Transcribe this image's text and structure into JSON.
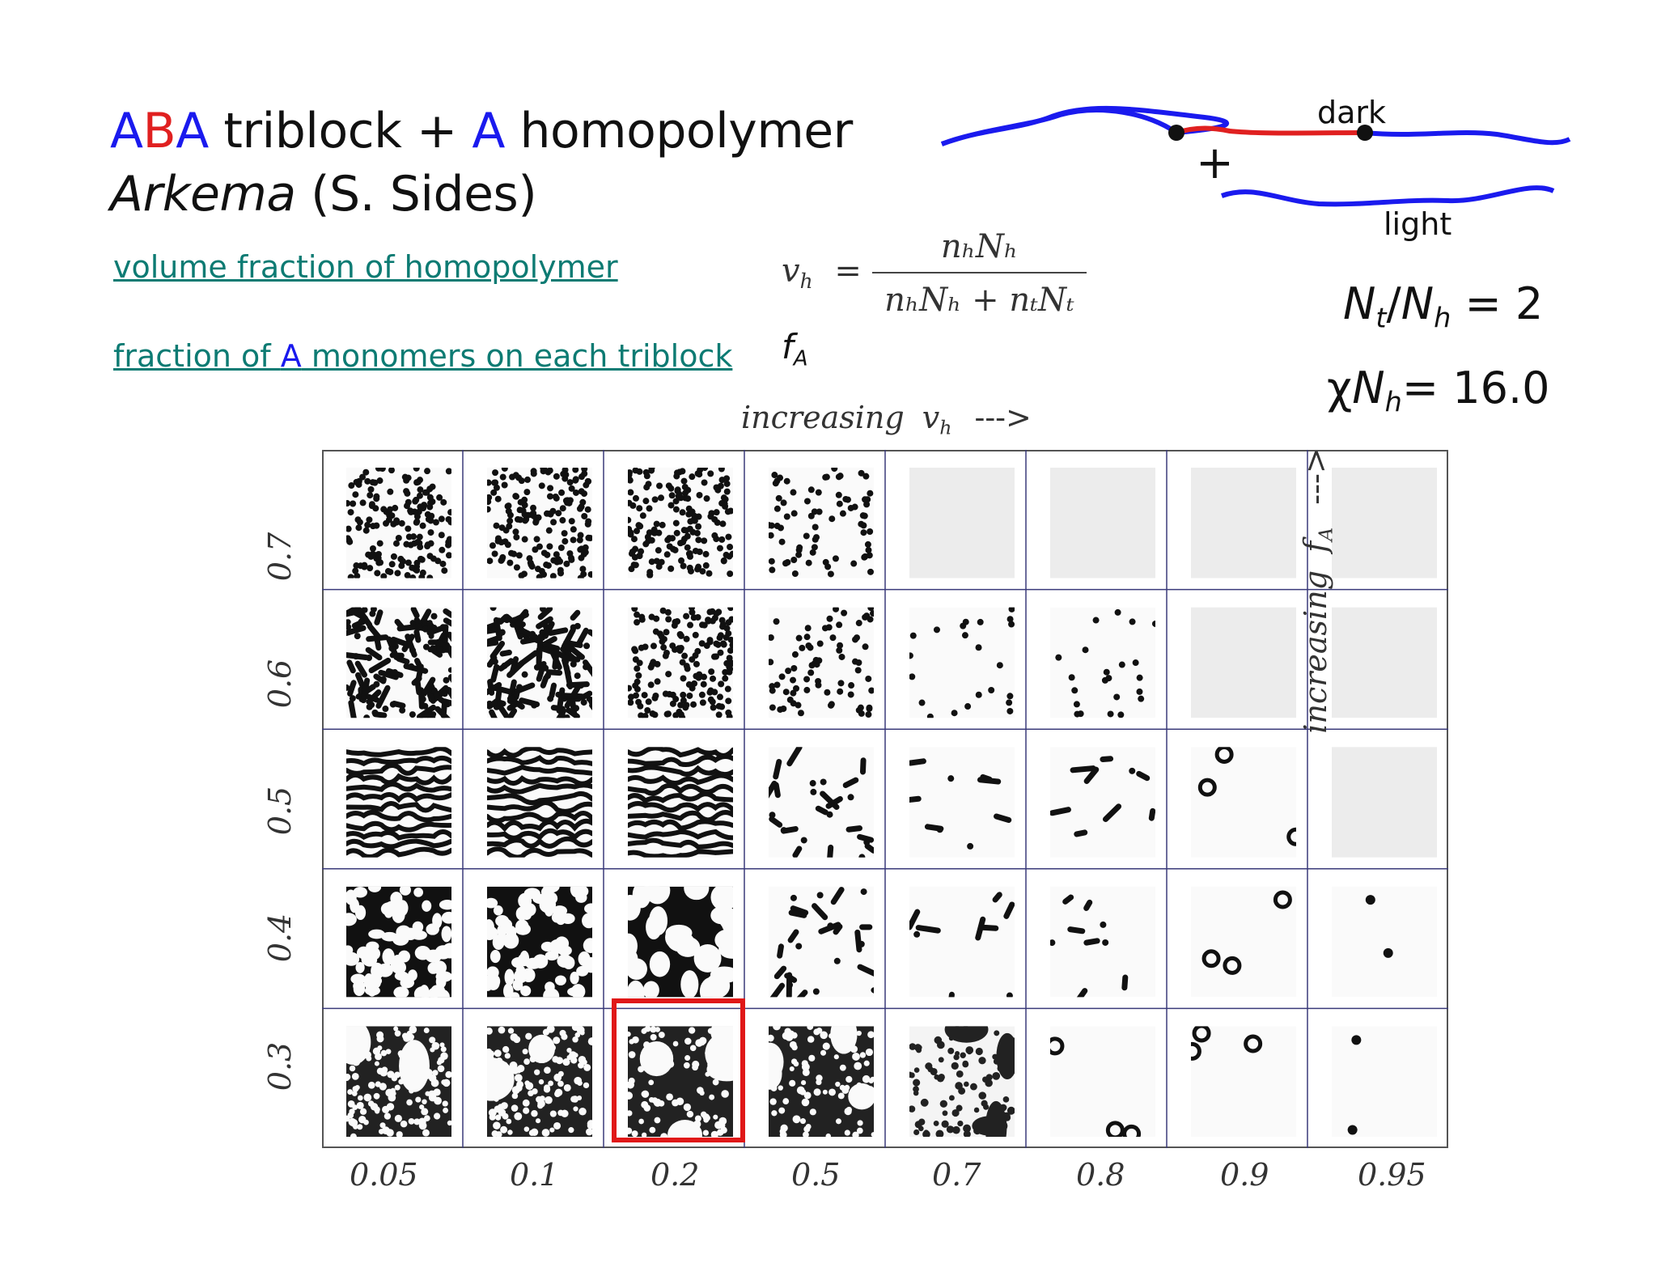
{
  "title": {
    "line1": {
      "A1": "A",
      "B": "B",
      "A2": "A",
      "triblock": " triblock + ",
      "A3": "A",
      "homopolymer": " homopolymer"
    },
    "line2": {
      "company": "Arkema",
      "credit": " (S. Sides)"
    }
  },
  "definitions": {
    "volume_fraction": "volume fraction of homopolymer",
    "fraction_prefix": "fraction of ",
    "fraction_A": "A",
    "fraction_suffix": " monomers on each triblock"
  },
  "equation": {
    "lhs": "v",
    "lhs_sub": "h",
    "equals": "=",
    "numerator": "nₕNₕ",
    "denominator": "nₕNₕ + nₜNₜ",
    "fA": "f",
    "fA_sub": "A"
  },
  "parameters": {
    "ratio_Nt": "N",
    "ratio_t": "t",
    "ratio_slash": "/",
    "ratio_Nh": "N",
    "ratio_h": "h",
    "ratio_value": " = 2",
    "chi": "χ",
    "chi_N": "N",
    "chi_h": "h",
    "chi_value": "= 16.0"
  },
  "schematic": {
    "dark_label": "dark",
    "light_label": "light",
    "plus": "+",
    "colors": {
      "A_block": "#1a1aee",
      "B_block": "#e02020"
    }
  },
  "axes": {
    "top_label_text": "increasing",
    "top_label_var": "v",
    "top_label_sub": "h",
    "top_label_arrow": "--->",
    "right_label_text": "increasing",
    "right_label_var": "f",
    "right_label_sub": "A",
    "right_label_arrow": "--->",
    "x_ticks": [
      "0.05",
      "0.1",
      "0.2",
      "0.5",
      "0.7",
      "0.8",
      "0.9",
      "0.95"
    ],
    "y_ticks": [
      "0.7",
      "0.6",
      "0.5",
      "0.4",
      "0.3"
    ]
  },
  "highlight": {
    "row": 4,
    "col": 2,
    "color": "#e01818"
  }
}
